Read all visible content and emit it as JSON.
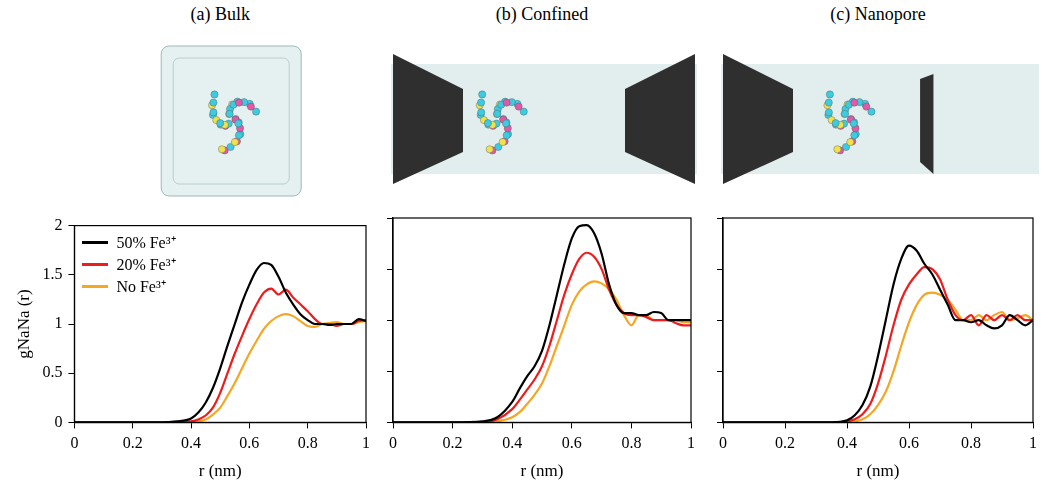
{
  "chart_data": [
    {
      "type": "line",
      "title": "(a) Bulk",
      "x_label": "r (nm)",
      "y_label": "gNaNa (r)",
      "x": [
        0,
        0.1,
        0.2,
        0.3,
        0.35,
        0.4,
        0.425,
        0.45,
        0.475,
        0.5,
        0.525,
        0.55,
        0.575,
        0.6,
        0.625,
        0.65,
        0.675,
        0.7,
        0.725,
        0.75,
        0.775,
        0.8,
        0.825,
        0.85,
        0.875,
        0.9,
        0.925,
        0.95,
        0.975,
        1
      ],
      "series": [
        {
          "name": "50% Fe³⁺",
          "color": "#000000",
          "values": [
            0,
            0,
            0,
            0,
            0.01,
            0.04,
            0.1,
            0.2,
            0.35,
            0.55,
            0.78,
            1.0,
            1.22,
            1.4,
            1.55,
            1.62,
            1.6,
            1.48,
            1.32,
            1.2,
            1.1,
            1.04,
            1.0,
            1.0,
            0.99,
            1.0,
            1.0,
            1.0,
            1.05,
            1.03
          ]
        },
        {
          "name": "20% Fe³⁺",
          "color": "#ee1c1c",
          "values": [
            0,
            0,
            0,
            0,
            0,
            0.01,
            0.03,
            0.07,
            0.15,
            0.3,
            0.5,
            0.7,
            0.88,
            1.05,
            1.2,
            1.32,
            1.36,
            1.3,
            1.35,
            1.27,
            1.2,
            1.13,
            1.05,
            1.0,
            1.0,
            0.98,
            1.0,
            1.0,
            1.03,
            1.04
          ]
        },
        {
          "name": "No Fe³⁺",
          "color": "#f5a623",
          "values": [
            0,
            0,
            0,
            0,
            0,
            0,
            0.01,
            0.03,
            0.08,
            0.15,
            0.27,
            0.4,
            0.55,
            0.7,
            0.83,
            0.95,
            1.03,
            1.08,
            1.1,
            1.08,
            1.03,
            0.98,
            0.97,
            1.0,
            1.01,
            1.02,
            1.0,
            1.0,
            1.02,
            1.03
          ]
        }
      ],
      "xlim": [
        0,
        1
      ],
      "ylim": [
        0,
        2
      ],
      "xticks": [
        0,
        0.2,
        0.4,
        0.6,
        0.8,
        1
      ],
      "yticks": [
        0,
        0.5,
        1,
        1.5,
        2
      ],
      "grid": false,
      "legend": "upper left"
    },
    {
      "type": "line",
      "title": "(b) Confined",
      "x_label": "r (nm)",
      "x": [
        0,
        0.1,
        0.2,
        0.3,
        0.35,
        0.4,
        0.425,
        0.45,
        0.475,
        0.5,
        0.525,
        0.55,
        0.575,
        0.6,
        0.625,
        0.65,
        0.675,
        0.7,
        0.725,
        0.75,
        0.775,
        0.8,
        0.825,
        0.85,
        0.875,
        0.9,
        0.925,
        0.95,
        0.975,
        1
      ],
      "series": [
        {
          "name": "50% Fe³⁺",
          "color": "#000000",
          "values": [
            0,
            0,
            0,
            0.01,
            0.05,
            0.2,
            0.33,
            0.45,
            0.55,
            0.7,
            0.95,
            1.25,
            1.55,
            1.8,
            1.92,
            1.93,
            1.85,
            1.65,
            1.35,
            1.15,
            1.07,
            1.07,
            1.05,
            1.05,
            1.08,
            1.07,
            1.0,
            1.0,
            1.0,
            1.0
          ]
        },
        {
          "name": "20% Fe³⁺",
          "color": "#ee1c1c",
          "values": [
            0,
            0,
            0,
            0,
            0.03,
            0.13,
            0.22,
            0.32,
            0.42,
            0.55,
            0.75,
            1.0,
            1.25,
            1.45,
            1.6,
            1.66,
            1.62,
            1.5,
            1.3,
            1.15,
            1.07,
            1.05,
            1.05,
            1.03,
            1.0,
            1.0,
            1.0,
            0.97,
            0.95,
            0.95
          ]
        },
        {
          "name": "No Fe³⁺",
          "color": "#f5a623",
          "values": [
            0,
            0,
            0,
            0,
            0.01,
            0.05,
            0.1,
            0.18,
            0.27,
            0.38,
            0.55,
            0.75,
            0.95,
            1.15,
            1.28,
            1.35,
            1.38,
            1.36,
            1.3,
            1.2,
            1.05,
            0.95,
            1.05,
            1.05,
            1.0,
            1.0,
            1.0,
            1.0,
            0.98,
            0.98
          ]
        }
      ],
      "xlim": [
        0,
        1
      ],
      "ylim": [
        0,
        2
      ],
      "xticks": [
        0,
        0.2,
        0.4,
        0.6,
        0.8,
        1
      ],
      "yticks": [
        0,
        0.5,
        1,
        1.5,
        2
      ],
      "grid": false,
      "tick_labels": "x"
    },
    {
      "type": "line",
      "title": "(c) Nanopore",
      "x_label": "r (nm)",
      "x": [
        0,
        0.1,
        0.2,
        0.3,
        0.35,
        0.4,
        0.425,
        0.45,
        0.475,
        0.5,
        0.525,
        0.55,
        0.575,
        0.6,
        0.625,
        0.65,
        0.675,
        0.7,
        0.725,
        0.75,
        0.775,
        0.8,
        0.825,
        0.85,
        0.875,
        0.9,
        0.925,
        0.95,
        0.975,
        1
      ],
      "series": [
        {
          "name": "50% Fe³⁺",
          "color": "#000000",
          "values": [
            0,
            0,
            0,
            0,
            0,
            0.02,
            0.07,
            0.17,
            0.35,
            0.65,
            1.0,
            1.35,
            1.6,
            1.73,
            1.68,
            1.55,
            1.45,
            1.3,
            1.15,
            1.0,
            1.0,
            0.98,
            1.0,
            0.95,
            0.92,
            0.95,
            1.05,
            1.0,
            0.95,
            1.0
          ]
        },
        {
          "name": "20% Fe³⁺",
          "color": "#ee1c1c",
          "values": [
            0,
            0,
            0,
            0,
            0,
            0.01,
            0.03,
            0.08,
            0.18,
            0.38,
            0.65,
            0.95,
            1.2,
            1.35,
            1.45,
            1.52,
            1.5,
            1.4,
            1.2,
            1.05,
            1.0,
            1.05,
            0.95,
            1.05,
            1.0,
            1.05,
            1.0,
            1.05,
            1.0,
            1.0
          ]
        },
        {
          "name": "No Fe³⁺",
          "color": "#f5a623",
          "values": [
            0,
            0,
            0,
            0,
            0,
            0,
            0.01,
            0.03,
            0.08,
            0.17,
            0.3,
            0.5,
            0.75,
            0.98,
            1.15,
            1.25,
            1.27,
            1.25,
            1.2,
            1.1,
            1.0,
            1.0,
            1.05,
            1.0,
            1.05,
            1.08,
            1.0,
            1.02,
            1.05,
            1.0
          ]
        }
      ],
      "xlim": [
        0,
        1
      ],
      "ylim": [
        0,
        2
      ],
      "xticks": [
        0,
        0.2,
        0.4,
        0.6,
        0.8,
        1
      ],
      "yticks": [
        0,
        0.5,
        1,
        1.5,
        2
      ],
      "grid": false,
      "tick_labels": "x"
    }
  ]
}
